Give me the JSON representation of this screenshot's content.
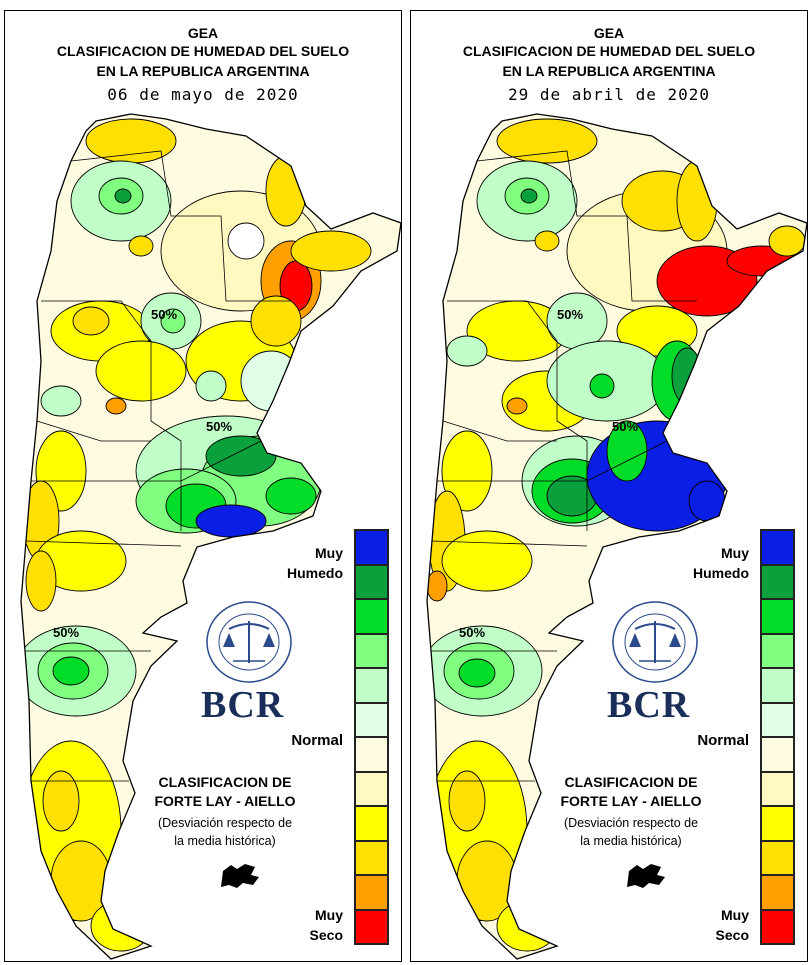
{
  "panels": [
    {
      "org": "GEA",
      "title_line1": "CLASIFICACION DE HUMEDAD DEL SUELO",
      "title_line2": "EN LA REPUBLICA ARGENTINA",
      "date": "06 de mayo de 2020",
      "contour_labels": [
        "50%",
        "50%",
        "50%"
      ]
    },
    {
      "org": "GEA",
      "title_line1": "CLASIFICACION DE HUMEDAD DEL SUELO",
      "title_line2": "EN LA REPUBLICA ARGENTINA",
      "date": "29 de abril de 2020",
      "contour_labels": [
        "50%",
        "50%",
        "50%"
      ]
    }
  ],
  "legend": {
    "top_label_1": "Muy",
    "top_label_2": "Humedo",
    "mid_label": "Normal",
    "bottom_label_1": "Muy",
    "bottom_label_2": "Seco",
    "colors": [
      "#0a1ee6",
      "#0aa03c",
      "#00dc28",
      "#80ff80",
      "#c0ffc8",
      "#e0ffe6",
      "#fffbe0",
      "#fff8c0",
      "#ffff00",
      "#ffe000",
      "#ffa000",
      "#ff0000"
    ]
  },
  "classification": {
    "line1": "CLASIFICACION DE",
    "line2": "FORTE LAY - AIELLO",
    "note1": "(Desviación respecto de",
    "note2": "la media histórica)"
  },
  "logo": {
    "seal_text": "BOLSA DE COMERCIO DE ROSARIO",
    "name": "BCR"
  }
}
